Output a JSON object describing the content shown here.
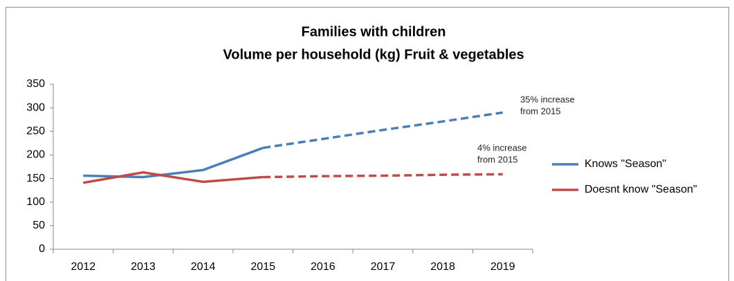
{
  "chart_data": {
    "type": "line",
    "title": [
      "Families with children",
      "Volume per household (kg) Fruit & vegetables"
    ],
    "categories": [
      "2012",
      "2013",
      "2014",
      "2015",
      "2016",
      "2017",
      "2018",
      "2019"
    ],
    "series": [
      {
        "name": "Knows \"Season\"",
        "color": "#4a7ebb",
        "values": [
          156,
          153,
          168,
          215,
          234,
          253,
          271,
          290
        ]
      },
      {
        "name": "Doesnt know \"Season\"",
        "color": "#be4b48",
        "values": [
          141,
          163,
          143,
          153,
          155,
          156,
          158,
          159
        ]
      }
    ],
    "projection_from": "2015",
    "ylim": [
      0,
      350
    ],
    "yticks": [
      0,
      50,
      100,
      150,
      200,
      250,
      300,
      350
    ],
    "legend": "right",
    "annotations": [
      {
        "lines": [
          "35% increase",
          "from 2015"
        ]
      },
      {
        "lines": [
          "4% increase",
          "from 2015"
        ]
      }
    ]
  }
}
